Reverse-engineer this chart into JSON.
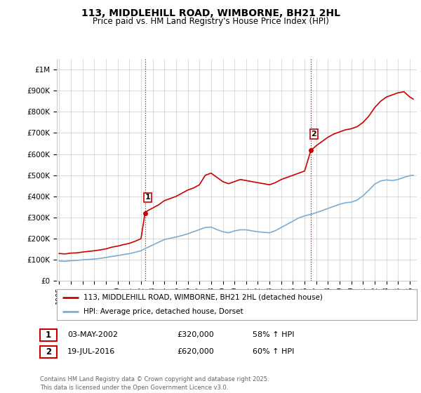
{
  "title": "113, MIDDLEHILL ROAD, WIMBORNE, BH21 2HL",
  "subtitle": "Price paid vs. HM Land Registry's House Price Index (HPI)",
  "yticks": [
    0,
    100000,
    200000,
    300000,
    400000,
    500000,
    600000,
    700000,
    800000,
    900000,
    1000000
  ],
  "ytick_labels": [
    "£0",
    "£100K",
    "£200K",
    "£300K",
    "£400K",
    "£500K",
    "£600K",
    "£700K",
    "£800K",
    "£900K",
    "£1M"
  ],
  "xlim_start": 1994.8,
  "xlim_end": 2025.6,
  "ylim": [
    0,
    1050000
  ],
  "red_line_color": "#cc0000",
  "blue_line_color": "#7aadd4",
  "purchase1_x": 2002.34,
  "purchase1_y": 320000,
  "purchase2_x": 2016.55,
  "purchase2_y": 620000,
  "vline_color": "#cc0000",
  "vline_style": ":",
  "annotation1_label": "1",
  "annotation2_label": "2",
  "legend_label_red": "113, MIDDLEHILL ROAD, WIMBORNE, BH21 2HL (detached house)",
  "legend_label_blue": "HPI: Average price, detached house, Dorset",
  "table_row1": [
    "1",
    "03-MAY-2002",
    "£320,000",
    "58% ↑ HPI"
  ],
  "table_row2": [
    "2",
    "19-JUL-2016",
    "£620,000",
    "60% ↑ HPI"
  ],
  "footnote": "Contains HM Land Registry data © Crown copyright and database right 2025.\nThis data is licensed under the Open Government Licence v3.0.",
  "background_color": "#ffffff",
  "grid_color": "#cccccc",
  "xticks": [
    1995,
    1996,
    1997,
    1998,
    1999,
    2000,
    2001,
    2002,
    2003,
    2004,
    2005,
    2006,
    2007,
    2008,
    2009,
    2010,
    2011,
    2012,
    2013,
    2014,
    2015,
    2016,
    2017,
    2018,
    2019,
    2020,
    2021,
    2022,
    2023,
    2024,
    2025
  ],
  "red_hpi_data": [
    [
      1995.0,
      130000
    ],
    [
      1995.5,
      128000
    ],
    [
      1996.0,
      132000
    ],
    [
      1996.5,
      133000
    ],
    [
      1997.0,
      137000
    ],
    [
      1997.5,
      140000
    ],
    [
      1998.0,
      143000
    ],
    [
      1998.5,
      147000
    ],
    [
      1999.0,
      152000
    ],
    [
      1999.5,
      160000
    ],
    [
      2000.0,
      165000
    ],
    [
      2000.5,
      172000
    ],
    [
      2001.0,
      178000
    ],
    [
      2001.5,
      188000
    ],
    [
      2002.0,
      200000
    ],
    [
      2002.34,
      320000
    ],
    [
      2002.5,
      330000
    ],
    [
      2003.0,
      345000
    ],
    [
      2003.5,
      360000
    ],
    [
      2004.0,
      380000
    ],
    [
      2004.5,
      390000
    ],
    [
      2005.0,
      400000
    ],
    [
      2005.5,
      415000
    ],
    [
      2006.0,
      430000
    ],
    [
      2006.5,
      440000
    ],
    [
      2007.0,
      455000
    ],
    [
      2007.5,
      500000
    ],
    [
      2008.0,
      510000
    ],
    [
      2008.5,
      490000
    ],
    [
      2009.0,
      470000
    ],
    [
      2009.5,
      460000
    ],
    [
      2010.0,
      470000
    ],
    [
      2010.5,
      480000
    ],
    [
      2011.0,
      475000
    ],
    [
      2011.5,
      470000
    ],
    [
      2012.0,
      465000
    ],
    [
      2012.5,
      460000
    ],
    [
      2013.0,
      455000
    ],
    [
      2013.5,
      465000
    ],
    [
      2014.0,
      480000
    ],
    [
      2014.5,
      490000
    ],
    [
      2015.0,
      500000
    ],
    [
      2015.5,
      510000
    ],
    [
      2016.0,
      520000
    ],
    [
      2016.55,
      620000
    ],
    [
      2016.8,
      630000
    ],
    [
      2017.0,
      640000
    ],
    [
      2017.5,
      660000
    ],
    [
      2018.0,
      680000
    ],
    [
      2018.5,
      695000
    ],
    [
      2019.0,
      705000
    ],
    [
      2019.5,
      715000
    ],
    [
      2020.0,
      720000
    ],
    [
      2020.5,
      730000
    ],
    [
      2021.0,
      750000
    ],
    [
      2021.5,
      780000
    ],
    [
      2022.0,
      820000
    ],
    [
      2022.5,
      850000
    ],
    [
      2023.0,
      870000
    ],
    [
      2023.5,
      880000
    ],
    [
      2024.0,
      890000
    ],
    [
      2024.5,
      895000
    ],
    [
      2025.0,
      870000
    ],
    [
      2025.3,
      860000
    ]
  ],
  "blue_hpi_data": [
    [
      1995.0,
      95000
    ],
    [
      1995.5,
      93000
    ],
    [
      1996.0,
      96000
    ],
    [
      1996.5,
      97000
    ],
    [
      1997.0,
      100000
    ],
    [
      1997.5,
      102000
    ],
    [
      1998.0,
      104000
    ],
    [
      1998.5,
      107000
    ],
    [
      1999.0,
      111000
    ],
    [
      1999.5,
      116000
    ],
    [
      2000.0,
      120000
    ],
    [
      2000.5,
      125000
    ],
    [
      2001.0,
      129000
    ],
    [
      2001.5,
      136000
    ],
    [
      2002.0,
      143000
    ],
    [
      2002.5,
      157000
    ],
    [
      2003.0,
      170000
    ],
    [
      2003.5,
      183000
    ],
    [
      2004.0,
      196000
    ],
    [
      2004.5,
      202000
    ],
    [
      2005.0,
      208000
    ],
    [
      2005.5,
      215000
    ],
    [
      2006.0,
      223000
    ],
    [
      2006.5,
      233000
    ],
    [
      2007.0,
      243000
    ],
    [
      2007.5,
      253000
    ],
    [
      2008.0,
      255000
    ],
    [
      2008.5,
      243000
    ],
    [
      2009.0,
      233000
    ],
    [
      2009.5,
      228000
    ],
    [
      2010.0,
      237000
    ],
    [
      2010.5,
      242000
    ],
    [
      2011.0,
      242000
    ],
    [
      2011.5,
      237000
    ],
    [
      2012.0,
      233000
    ],
    [
      2012.5,
      230000
    ],
    [
      2013.0,
      228000
    ],
    [
      2013.5,
      238000
    ],
    [
      2014.0,
      253000
    ],
    [
      2014.5,
      268000
    ],
    [
      2015.0,
      283000
    ],
    [
      2015.5,
      298000
    ],
    [
      2016.0,
      308000
    ],
    [
      2016.5,
      315000
    ],
    [
      2017.0,
      323000
    ],
    [
      2017.5,
      333000
    ],
    [
      2018.0,
      343000
    ],
    [
      2018.5,
      353000
    ],
    [
      2019.0,
      363000
    ],
    [
      2019.5,
      370000
    ],
    [
      2020.0,
      373000
    ],
    [
      2020.5,
      383000
    ],
    [
      2021.0,
      403000
    ],
    [
      2021.5,
      430000
    ],
    [
      2022.0,
      458000
    ],
    [
      2022.5,
      473000
    ],
    [
      2023.0,
      478000
    ],
    [
      2023.5,
      475000
    ],
    [
      2024.0,
      480000
    ],
    [
      2024.5,
      490000
    ],
    [
      2025.0,
      498000
    ],
    [
      2025.3,
      500000
    ]
  ]
}
